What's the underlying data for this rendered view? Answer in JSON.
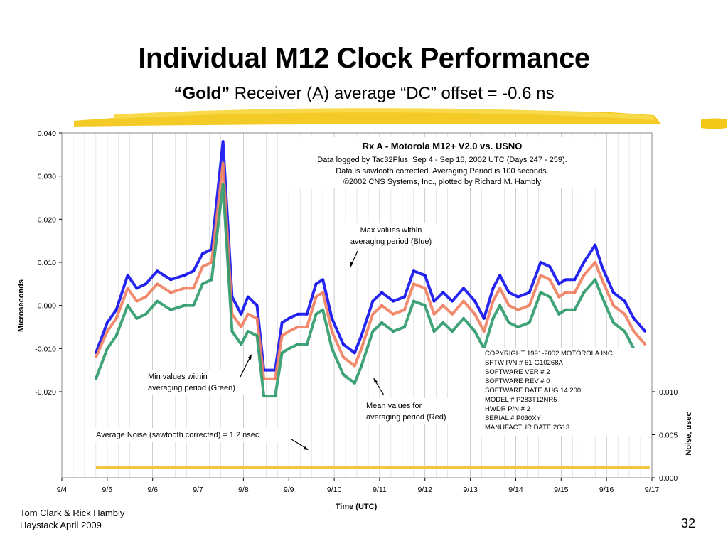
{
  "slide": {
    "title": "Individual M12 Clock Performance",
    "subtitle_bold": "“Gold”",
    "subtitle_rest": " Receiver (A) average “DC” offset = -0.6 ns",
    "footer_line1": "Tom Clark & Rick Hambly",
    "footer_line2": "Haystack     April 2009",
    "page_number": "32",
    "accent_color": "#f2c200"
  },
  "chart_data": {
    "type": "scatter",
    "title": "Rx A - Motorola M12+ V2.0 vs. USNO",
    "subtitle_lines": [
      "Data logged by Tac32Plus, Sep 4 - Sep 16, 2002 UTC (Days 247 - 259).",
      "Data is sawtooth corrected. Averaging Period is 100 seconds.",
      "©2002 CNS Systems, Inc., plotted by Richard M. Hambly"
    ],
    "xlabel": "Time (UTC)",
    "ylabel": "Microseconds",
    "y2label": "Noise, usec",
    "x_ticks": [
      "9/4",
      "9/5",
      "9/6",
      "9/7",
      "9/8",
      "9/9",
      "9/10",
      "9/11",
      "9/12",
      "9/13",
      "9/14",
      "9/15",
      "9/16",
      "9/17"
    ],
    "xlim_days": [
      0,
      13
    ],
    "y_ticks": [
      "0.040",
      "0.030",
      "0.020",
      "0.010",
      "0.000",
      "-0.010",
      "-0.020"
    ],
    "ylim": [
      -0.02,
      0.04
    ],
    "y2_ticks": [
      "0.010",
      "0.005",
      "0.000"
    ],
    "y2lim": [
      0,
      0.01
    ],
    "grid": "vertical",
    "colors": {
      "max": "#1010ee",
      "mean": "#f08060",
      "min": "#2e9a6a",
      "noise": "#f5c542"
    },
    "series": [
      {
        "name": "Max values within averaging period (Blue)",
        "color": "#1010ee",
        "points": [
          [
            0.75,
            -0.011
          ],
          [
            1.0,
            -0.004
          ],
          [
            1.2,
            -0.001
          ],
          [
            1.45,
            0.007
          ],
          [
            1.65,
            0.004
          ],
          [
            1.85,
            0.005
          ],
          [
            2.1,
            0.008
          ],
          [
            2.4,
            0.006
          ],
          [
            2.7,
            0.007
          ],
          [
            2.9,
            0.008
          ],
          [
            3.1,
            0.012
          ],
          [
            3.3,
            0.013
          ],
          [
            3.55,
            0.038
          ],
          [
            3.75,
            0.002
          ],
          [
            3.95,
            -0.002
          ],
          [
            4.1,
            0.002
          ],
          [
            4.3,
            0.0
          ],
          [
            4.45,
            -0.015
          ],
          [
            4.7,
            -0.015
          ],
          [
            4.85,
            -0.004
          ],
          [
            5.0,
            -0.003
          ],
          [
            5.2,
            -0.002
          ],
          [
            5.4,
            -0.002
          ],
          [
            5.6,
            0.005
          ],
          [
            5.75,
            0.006
          ],
          [
            5.95,
            -0.003
          ],
          [
            6.2,
            -0.009
          ],
          [
            6.45,
            -0.011
          ],
          [
            6.6,
            -0.007
          ],
          [
            6.85,
            0.001
          ],
          [
            7.05,
            0.003
          ],
          [
            7.3,
            0.001
          ],
          [
            7.55,
            0.002
          ],
          [
            7.75,
            0.008
          ],
          [
            8.0,
            0.007
          ],
          [
            8.2,
            0.001
          ],
          [
            8.4,
            0.003
          ],
          [
            8.6,
            0.001
          ],
          [
            8.85,
            0.004
          ],
          [
            9.1,
            0.001
          ],
          [
            9.3,
            -0.003
          ],
          [
            9.5,
            0.004
          ],
          [
            9.65,
            0.007
          ],
          [
            9.85,
            0.003
          ],
          [
            10.05,
            0.002
          ],
          [
            10.3,
            0.003
          ],
          [
            10.55,
            0.01
          ],
          [
            10.75,
            0.009
          ],
          [
            10.95,
            0.005
          ],
          [
            11.1,
            0.006
          ],
          [
            11.3,
            0.006
          ],
          [
            11.5,
            0.01
          ],
          [
            11.75,
            0.014
          ],
          [
            11.9,
            0.009
          ],
          [
            12.15,
            0.003
          ],
          [
            12.4,
            0.001
          ],
          [
            12.6,
            -0.003
          ],
          [
            12.85,
            -0.006
          ]
        ]
      },
      {
        "name": "Mean values for averaging period (Red)",
        "color": "#f08060",
        "points": [
          [
            0.75,
            -0.012
          ],
          [
            1.0,
            -0.006
          ],
          [
            1.2,
            -0.003
          ],
          [
            1.45,
            0.004
          ],
          [
            1.65,
            0.001
          ],
          [
            1.85,
            0.002
          ],
          [
            2.1,
            0.005
          ],
          [
            2.4,
            0.003
          ],
          [
            2.7,
            0.004
          ],
          [
            2.9,
            0.004
          ],
          [
            3.1,
            0.009
          ],
          [
            3.3,
            0.01
          ],
          [
            3.55,
            0.033
          ],
          [
            3.75,
            -0.002
          ],
          [
            3.95,
            -0.005
          ],
          [
            4.1,
            -0.002
          ],
          [
            4.3,
            -0.003
          ],
          [
            4.45,
            -0.017
          ],
          [
            4.7,
            -0.017
          ],
          [
            4.85,
            -0.007
          ],
          [
            5.0,
            -0.006
          ],
          [
            5.2,
            -0.005
          ],
          [
            5.4,
            -0.005
          ],
          [
            5.6,
            0.002
          ],
          [
            5.75,
            0.003
          ],
          [
            5.95,
            -0.006
          ],
          [
            6.2,
            -0.012
          ],
          [
            6.45,
            -0.014
          ],
          [
            6.6,
            -0.01
          ],
          [
            6.85,
            -0.002
          ],
          [
            7.05,
            0.0
          ],
          [
            7.3,
            -0.002
          ],
          [
            7.55,
            -0.001
          ],
          [
            7.75,
            0.005
          ],
          [
            8.0,
            0.004
          ],
          [
            8.2,
            -0.002
          ],
          [
            8.4,
            0.0
          ],
          [
            8.6,
            -0.002
          ],
          [
            8.85,
            0.001
          ],
          [
            9.1,
            -0.002
          ],
          [
            9.3,
            -0.006
          ],
          [
            9.5,
            0.001
          ],
          [
            9.65,
            0.004
          ],
          [
            9.85,
            0.0
          ],
          [
            10.05,
            -0.001
          ],
          [
            10.3,
            0.0
          ],
          [
            10.55,
            0.007
          ],
          [
            10.75,
            0.006
          ],
          [
            10.95,
            0.002
          ],
          [
            11.1,
            0.003
          ],
          [
            11.3,
            0.003
          ],
          [
            11.5,
            0.007
          ],
          [
            11.75,
            0.01
          ],
          [
            11.9,
            0.006
          ],
          [
            12.15,
            0.0
          ],
          [
            12.4,
            -0.002
          ],
          [
            12.6,
            -0.006
          ],
          [
            12.85,
            -0.009
          ]
        ]
      },
      {
        "name": "Min values within averaging period (Green)",
        "color": "#2e9a6a",
        "points": [
          [
            0.75,
            -0.017
          ],
          [
            1.0,
            -0.01
          ],
          [
            1.2,
            -0.007
          ],
          [
            1.45,
            0.0
          ],
          [
            1.65,
            -0.003
          ],
          [
            1.85,
            -0.002
          ],
          [
            2.1,
            0.001
          ],
          [
            2.4,
            -0.001
          ],
          [
            2.7,
            0.0
          ],
          [
            2.9,
            0.0
          ],
          [
            3.1,
            0.005
          ],
          [
            3.3,
            0.006
          ],
          [
            3.55,
            0.028
          ],
          [
            3.75,
            -0.006
          ],
          [
            3.95,
            -0.009
          ],
          [
            4.1,
            -0.006
          ],
          [
            4.3,
            -0.007
          ],
          [
            4.45,
            -0.021
          ],
          [
            4.7,
            -0.021
          ],
          [
            4.85,
            -0.011
          ],
          [
            5.0,
            -0.01
          ],
          [
            5.2,
            -0.009
          ],
          [
            5.4,
            -0.009
          ],
          [
            5.6,
            -0.002
          ],
          [
            5.75,
            -0.001
          ],
          [
            5.95,
            -0.01
          ],
          [
            6.2,
            -0.016
          ],
          [
            6.45,
            -0.018
          ],
          [
            6.6,
            -0.014
          ],
          [
            6.85,
            -0.006
          ],
          [
            7.05,
            -0.004
          ],
          [
            7.3,
            -0.006
          ],
          [
            7.55,
            -0.005
          ],
          [
            7.75,
            0.001
          ],
          [
            8.0,
            0.0
          ],
          [
            8.2,
            -0.006
          ],
          [
            8.4,
            -0.004
          ],
          [
            8.6,
            -0.006
          ],
          [
            8.85,
            -0.003
          ],
          [
            9.1,
            -0.006
          ],
          [
            9.3,
            -0.01
          ],
          [
            9.5,
            -0.003
          ],
          [
            9.65,
            0.0
          ],
          [
            9.85,
            -0.004
          ],
          [
            10.05,
            -0.005
          ],
          [
            10.3,
            -0.004
          ],
          [
            10.55,
            0.003
          ],
          [
            10.75,
            0.002
          ],
          [
            10.95,
            -0.002
          ],
          [
            11.1,
            -0.001
          ],
          [
            11.3,
            -0.001
          ],
          [
            11.5,
            0.003
          ],
          [
            11.75,
            0.006
          ],
          [
            11.9,
            0.002
          ],
          [
            12.15,
            -0.004
          ],
          [
            12.4,
            -0.006
          ],
          [
            12.6,
            -0.01
          ],
          [
            12.85,
            -0.013
          ]
        ]
      },
      {
        "name": "Average Noise (sawtooth corrected)",
        "color": "#f5c542",
        "axis": "y2",
        "points": [
          [
            0.75,
            0.0012
          ],
          [
            2.0,
            0.0012
          ],
          [
            4.0,
            0.0012
          ],
          [
            6.0,
            0.0012
          ],
          [
            8.0,
            0.0012
          ],
          [
            10.0,
            0.0012
          ],
          [
            12.0,
            0.0012
          ],
          [
            12.95,
            0.0012
          ]
        ]
      }
    ],
    "annotations": {
      "max_label": [
        "Max values within",
        "averaging period (Blue)"
      ],
      "min_label": [
        "Min values within",
        "averaging period (Green)"
      ],
      "mean_label": [
        "Mean values for",
        "averaging period (Red)"
      ],
      "noise_label": "Average Noise (sawtooth corrected) = 1.2 nsec",
      "copyright_lines": [
        "COPYRIGHT 1991-2002 MOTOROLA INC.",
        "SFTW P/N #     61-G10268A",
        "SOFTWARE VER # 2",
        "SOFTWARE REV # 0",
        "SOFTWARE DATE  AUG 14 200",
        "MODEL #    P283T12NR5",
        "HWDR P/N # 2",
        "SERIAL #   P030XY",
        "MANUFACTUR DATE 2G13"
      ]
    }
  }
}
